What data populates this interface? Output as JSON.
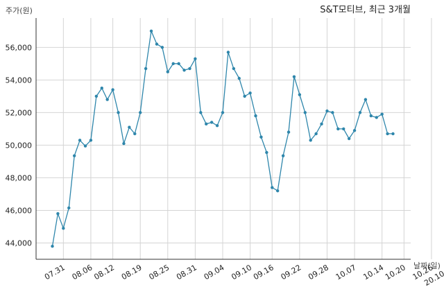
{
  "chart_data": {
    "type": "line",
    "title": "S&T모티브, 최근 3개월",
    "ylabel": "주가(원)",
    "xlabel": "날짜(일)",
    "ylim": [
      43000,
      57800
    ],
    "yticks": [
      44000,
      46000,
      48000,
      50000,
      52000,
      54000,
      56000
    ],
    "ytick_labels": [
      "44,000",
      "46,000",
      "48,000",
      "50,000",
      "52,000",
      "54,000",
      "56,000"
    ],
    "xticks": [
      {
        "index": 2,
        "label": "07.31"
      },
      {
        "index": 7,
        "label": "08.06"
      },
      {
        "index": 11,
        "label": "08.12"
      },
      {
        "index": 16,
        "label": "08.19"
      },
      {
        "index": 21,
        "label": "08.25"
      },
      {
        "index": 26,
        "label": "08.31"
      },
      {
        "index": 31,
        "label": "09.04"
      },
      {
        "index": 36,
        "label": "09.10"
      },
      {
        "index": 40,
        "label": "09.16"
      },
      {
        "index": 45,
        "label": "09.22"
      },
      {
        "index": 50,
        "label": "09.28"
      },
      {
        "index": 55,
        "label": "10.07"
      },
      {
        "index": 60,
        "label": "10.14"
      },
      {
        "index": 64,
        "label": "10.20"
      },
      {
        "index": 69,
        "label": "10.26"
      },
      {
        "index": 73,
        "label": "20.10.30"
      }
    ],
    "grid": true,
    "color": "#2e86ab",
    "series": [
      {
        "values": [
          43800,
          45800,
          44900,
          46150,
          49350,
          50300,
          49950,
          50300,
          53000,
          53500,
          52800,
          53400,
          52000,
          50100,
          51100,
          50700,
          52000,
          54700,
          57000,
          56200,
          56000,
          54500,
          55000,
          55000,
          54600,
          54700,
          55300,
          52000,
          51300,
          51400,
          51200,
          52000,
          55700,
          54700,
          54100,
          53000,
          53200,
          51800,
          50500,
          49550,
          47400,
          47200,
          49350,
          50800,
          54200,
          53100,
          52000,
          50300,
          50700,
          51300,
          52100,
          52000,
          51000,
          51000,
          50400,
          50900,
          52000,
          52800,
          51800,
          51700,
          51900,
          50700,
          50700
        ]
      }
    ]
  }
}
